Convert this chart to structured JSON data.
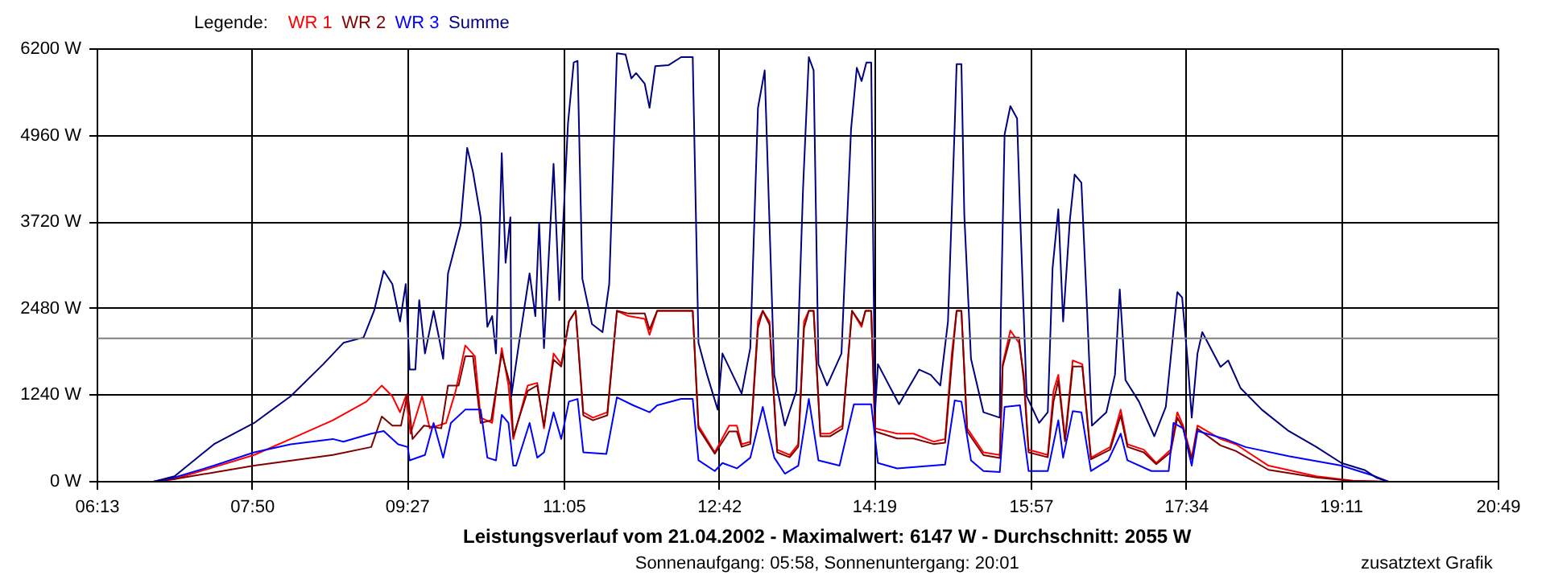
{
  "chart_data": {
    "type": "line",
    "title": "Leistungsverlauf vom 21.04.2002 - Maximalwert: 6147 W - Durchschnitt: 2055 W",
    "subtitle": "Sonnenaufgang: 05:58, Sonnenuntergang: 20:01",
    "legend_title": "Legende:",
    "annotations": [
      "zusatztext Grafik"
    ],
    "legend": "top left",
    "grid": true,
    "xlim": [
      6.2167,
      20.8167
    ],
    "xticks": [
      {
        "value": 6.2167,
        "label": "06:13"
      },
      {
        "value": 7.8333,
        "label": "07:50"
      },
      {
        "value": 9.45,
        "label": "09:27"
      },
      {
        "value": 11.0833,
        "label": "11:05"
      },
      {
        "value": 12.7,
        "label": "12:42"
      },
      {
        "value": 14.3167,
        "label": "14:19"
      },
      {
        "value": 15.95,
        "label": "15:57"
      },
      {
        "value": 17.5667,
        "label": "17:34"
      },
      {
        "value": 19.1833,
        "label": "19:11"
      },
      {
        "value": 20.8167,
        "label": "20:49"
      }
    ],
    "ylim": [
      0,
      6200
    ],
    "yticks": [
      {
        "value": 0,
        "label": "0 W"
      },
      {
        "value": 1240,
        "label": "1240 W"
      },
      {
        "value": 2480,
        "label": "2480 W"
      },
      {
        "value": 3720,
        "label": "3720 W"
      },
      {
        "value": 4960,
        "label": "4960 W"
      },
      {
        "value": 6200,
        "label": "6200 W"
      }
    ],
    "ref_lines": [
      {
        "axis": "y",
        "value": 2055,
        "color": "#808080"
      }
    ],
    "series": [
      {
        "name": "WR 1",
        "color": "#ff0000",
        "x": [
          6.8,
          7.02,
          7.85,
          8.23,
          8.67,
          9.02,
          9.18,
          9.29,
          9.37,
          9.43,
          9.48,
          9.6,
          9.68,
          9.85,
          9.95,
          10.05,
          10.15,
          10.21,
          10.33,
          10.43,
          10.5,
          10.55,
          10.7,
          10.8,
          10.87,
          10.97,
          11.05,
          11.13,
          11.2,
          11.28,
          11.38,
          11.53,
          11.63,
          11.75,
          11.92,
          11.97,
          12.05,
          12.42,
          12.48,
          12.65,
          12.8,
          12.88,
          12.93,
          13.02,
          13.1,
          13.15,
          13.22,
          13.3,
          13.43,
          13.52,
          13.58,
          13.63,
          13.68,
          13.75,
          13.85,
          13.98,
          14.08,
          14.18,
          14.22,
          14.28,
          14.32,
          14.55,
          14.72,
          14.93,
          15.05,
          15.12,
          15.17,
          15.22,
          15.28,
          15.45,
          15.62,
          15.65,
          15.73,
          15.82,
          15.87,
          15.92,
          16.12,
          16.18,
          16.23,
          16.3,
          16.38,
          16.48,
          16.57,
          16.77,
          16.88,
          16.95,
          17.12,
          17.25,
          17.4,
          17.47,
          17.53,
          17.62,
          17.68,
          17.92,
          18.08,
          18.42,
          18.92,
          19.3,
          19.67
        ],
        "values": [
          0,
          38,
          383,
          612,
          880,
          1148,
          1378,
          1225,
          995,
          1225,
          689,
          1225,
          765,
          842,
          1301,
          1952,
          1799,
          918,
          842,
          1914,
          1378,
          612,
          1378,
          1416,
          765,
          1837,
          1684,
          2296,
          2449,
          995,
          918,
          995,
          2449,
          2373,
          2334,
          2105,
          2449,
          2449,
          804,
          421,
          804,
          804,
          536,
          574,
          2296,
          2449,
          2296,
          459,
          383,
          536,
          2296,
          2449,
          2449,
          689,
          689,
          804,
          2449,
          2220,
          2449,
          2449,
          765,
          689,
          689,
          574,
          612,
          1837,
          2449,
          2449,
          765,
          421,
          383,
          1684,
          2166,
          1990,
          1531,
          459,
          383,
          1301,
          1531,
          612,
          1737,
          1684,
          344,
          497,
          1033,
          536,
          459,
          268,
          459,
          995,
          804,
          344,
          804,
          612,
          536,
          230,
          77,
          15,
          0
        ]
      },
      {
        "name": "WR 2",
        "color": "#800000",
        "x": [
          6.8,
          7.02,
          7.85,
          8.67,
          9.07,
          9.18,
          9.29,
          9.38,
          9.45,
          9.5,
          9.62,
          9.8,
          9.87,
          9.98,
          10.05,
          10.13,
          10.21,
          10.32,
          10.43,
          10.52,
          10.55,
          10.7,
          10.8,
          10.87,
          10.97,
          11.05,
          11.13,
          11.2,
          11.28,
          11.38,
          11.53,
          11.63,
          11.75,
          11.92,
          11.97,
          12.05,
          12.42,
          12.48,
          12.65,
          12.8,
          12.88,
          12.93,
          13.02,
          13.1,
          13.15,
          13.22,
          13.3,
          13.43,
          13.52,
          13.58,
          13.63,
          13.68,
          13.75,
          13.85,
          13.98,
          14.08,
          14.18,
          14.22,
          14.28,
          14.32,
          14.55,
          14.72,
          14.93,
          15.05,
          15.12,
          15.17,
          15.22,
          15.28,
          15.45,
          15.62,
          15.65,
          15.73,
          15.82,
          15.87,
          15.92,
          16.12,
          16.18,
          16.23,
          16.3,
          16.38,
          16.48,
          16.57,
          16.77,
          16.88,
          16.95,
          17.12,
          17.25,
          17.4,
          17.47,
          17.53,
          17.62,
          17.68,
          17.92,
          18.08,
          18.42,
          18.92,
          19.3,
          19.67
        ],
        "values": [
          0,
          38,
          230,
          383,
          497,
          934,
          804,
          804,
          1263,
          612,
          804,
          765,
          1378,
          1378,
          1799,
          1799,
          842,
          880,
          1837,
          1378,
          650,
          1300,
          1380,
          800,
          1750,
          1650,
          2296,
          2449,
          950,
          880,
          950,
          2449,
          2410,
          2410,
          2180,
          2449,
          2449,
          765,
          400,
          720,
          720,
          500,
          540,
          2200,
          2449,
          2250,
          420,
          350,
          500,
          2200,
          2449,
          2449,
          650,
          650,
          760,
          2449,
          2250,
          2449,
          2449,
          720,
          620,
          620,
          540,
          560,
          1700,
          2449,
          2449,
          720,
          380,
          340,
          1650,
          2067,
          2067,
          1450,
          420,
          350,
          1150,
          1450,
          580,
          1650,
          1650,
          320,
          460,
          950,
          500,
          420,
          250,
          420,
          918,
          765,
          320,
          760,
          520,
          440,
          170,
          60,
          10,
          0
        ]
      },
      {
        "name": "WR 3",
        "color": "#0000ff",
        "x": [
          6.8,
          7.02,
          7.43,
          7.85,
          8.23,
          8.67,
          8.78,
          9.07,
          9.2,
          9.35,
          9.45,
          9.47,
          9.63,
          9.72,
          9.82,
          9.9,
          10.05,
          10.21,
          10.28,
          10.37,
          10.43,
          10.5,
          10.55,
          10.58,
          10.72,
          10.8,
          10.87,
          10.97,
          11.05,
          11.13,
          11.22,
          11.28,
          11.52,
          11.63,
          11.8,
          11.97,
          12.05,
          12.3,
          12.42,
          12.48,
          12.65,
          12.73,
          12.88,
          13.02,
          13.15,
          13.27,
          13.38,
          13.52,
          13.63,
          13.73,
          13.95,
          14.1,
          14.28,
          14.35,
          14.55,
          15.05,
          15.15,
          15.22,
          15.32,
          15.45,
          15.62,
          15.67,
          15.83,
          15.92,
          16.12,
          16.23,
          16.28,
          16.38,
          16.47,
          16.57,
          16.75,
          16.88,
          16.95,
          17.2,
          17.38,
          17.43,
          17.53,
          17.62,
          17.68,
          17.97,
          18.18,
          18.63,
          19.18,
          19.5,
          19.67
        ],
        "values": [
          0,
          60,
          230,
          421,
          536,
          612,
          574,
          689,
          727,
          536,
          497,
          306,
          383,
          842,
          344,
          842,
          1033,
          1033,
          344,
          306,
          957,
          842,
          230,
          230,
          842,
          344,
          421,
          995,
          612,
          1148,
          1186,
          421,
          398,
          1209,
          1095,
          995,
          1095,
          1186,
          1186,
          306,
          153,
          268,
          191,
          344,
          1072,
          344,
          115,
          230,
          1186,
          306,
          230,
          1110,
          1110,
          268,
          191,
          245,
          1163,
          1148,
          306,
          153,
          138,
          1072,
          1095,
          153,
          153,
          880,
          344,
          1010,
          995,
          153,
          306,
          689,
          306,
          153,
          153,
          842,
          765,
          230,
          727,
          612,
          497,
          367,
          230,
          92,
          0
        ]
      },
      {
        "name": "Summe",
        "color": "#000080",
        "x": [
          6.8,
          7.02,
          7.43,
          7.85,
          8.23,
          8.57,
          8.78,
          8.99,
          9.1,
          9.2,
          9.29,
          9.37,
          9.43,
          9.47,
          9.53,
          9.57,
          9.63,
          9.72,
          9.82,
          9.87,
          10.0,
          10.07,
          10.13,
          10.21,
          10.28,
          10.33,
          10.37,
          10.43,
          10.47,
          10.52,
          10.53,
          10.61,
          10.72,
          10.78,
          10.82,
          10.87,
          10.97,
          11.03,
          11.08,
          11.12,
          11.18,
          11.22,
          11.27,
          11.37,
          11.48,
          11.55,
          11.63,
          11.72,
          11.78,
          11.83,
          11.92,
          11.97,
          12.03,
          12.17,
          12.3,
          12.42,
          12.48,
          12.57,
          12.68,
          12.73,
          12.93,
          13.02,
          13.1,
          13.17,
          13.27,
          13.38,
          13.5,
          13.57,
          13.63,
          13.68,
          13.73,
          13.82,
          13.97,
          14.07,
          14.13,
          14.18,
          14.23,
          14.28,
          14.32,
          14.35,
          14.57,
          14.78,
          14.9,
          15.0,
          15.08,
          15.15,
          15.17,
          15.22,
          15.25,
          15.32,
          15.45,
          15.62,
          15.63,
          15.67,
          15.73,
          15.8,
          15.83,
          15.9,
          16.03,
          16.12,
          16.17,
          16.23,
          16.28,
          16.35,
          16.4,
          16.47,
          16.53,
          16.58,
          16.73,
          16.82,
          16.87,
          16.93,
          17.07,
          17.23,
          17.35,
          17.47,
          17.52,
          17.58,
          17.62,
          17.68,
          17.73,
          17.92,
          18.0,
          18.13,
          18.35,
          18.63,
          18.92,
          19.18,
          19.42,
          19.55,
          19.67
        ],
        "values": [
          0,
          77,
          536,
          842,
          1225,
          1684,
          1990,
          2067,
          2449,
          3023,
          2832,
          2296,
          2832,
          1607,
          1607,
          2602,
          1837,
          2449,
          1760,
          2985,
          3674,
          4784,
          4439,
          3789,
          2220,
          2373,
          1837,
          4707,
          3138,
          3789,
          1225,
          1990,
          2985,
          2373,
          3712,
          1914,
          4554,
          2602,
          3980,
          5128,
          6008,
          6031,
          2908,
          2258,
          2143,
          2832,
          6139,
          6123,
          5779,
          5855,
          5702,
          5358,
          5955,
          5970,
          6085,
          6085,
          1990,
          1531,
          1033,
          1837,
          1263,
          1914,
          5358,
          5894,
          1531,
          804,
          1301,
          4210,
          6085,
          5894,
          1684,
          1378,
          1837,
          5052,
          5932,
          5741,
          6008,
          6008,
          995,
          1684,
          1110,
          1607,
          1531,
          1378,
          2296,
          5090,
          5985,
          5985,
          3827,
          1760,
          995,
          918,
          2296,
          4975,
          5381,
          5205,
          3903,
          1225,
          842,
          995,
          3062,
          3903,
          2296,
          3750,
          4401,
          4286,
          2449,
          804,
          995,
          1531,
          2755,
          1454,
          1148,
          651,
          1072,
          2717,
          2641,
          1684,
          918,
          1837,
          2143,
          1646,
          1737,
          1339,
          1033,
          727,
          497,
          268,
          168,
          54,
          0
        ]
      }
    ]
  }
}
